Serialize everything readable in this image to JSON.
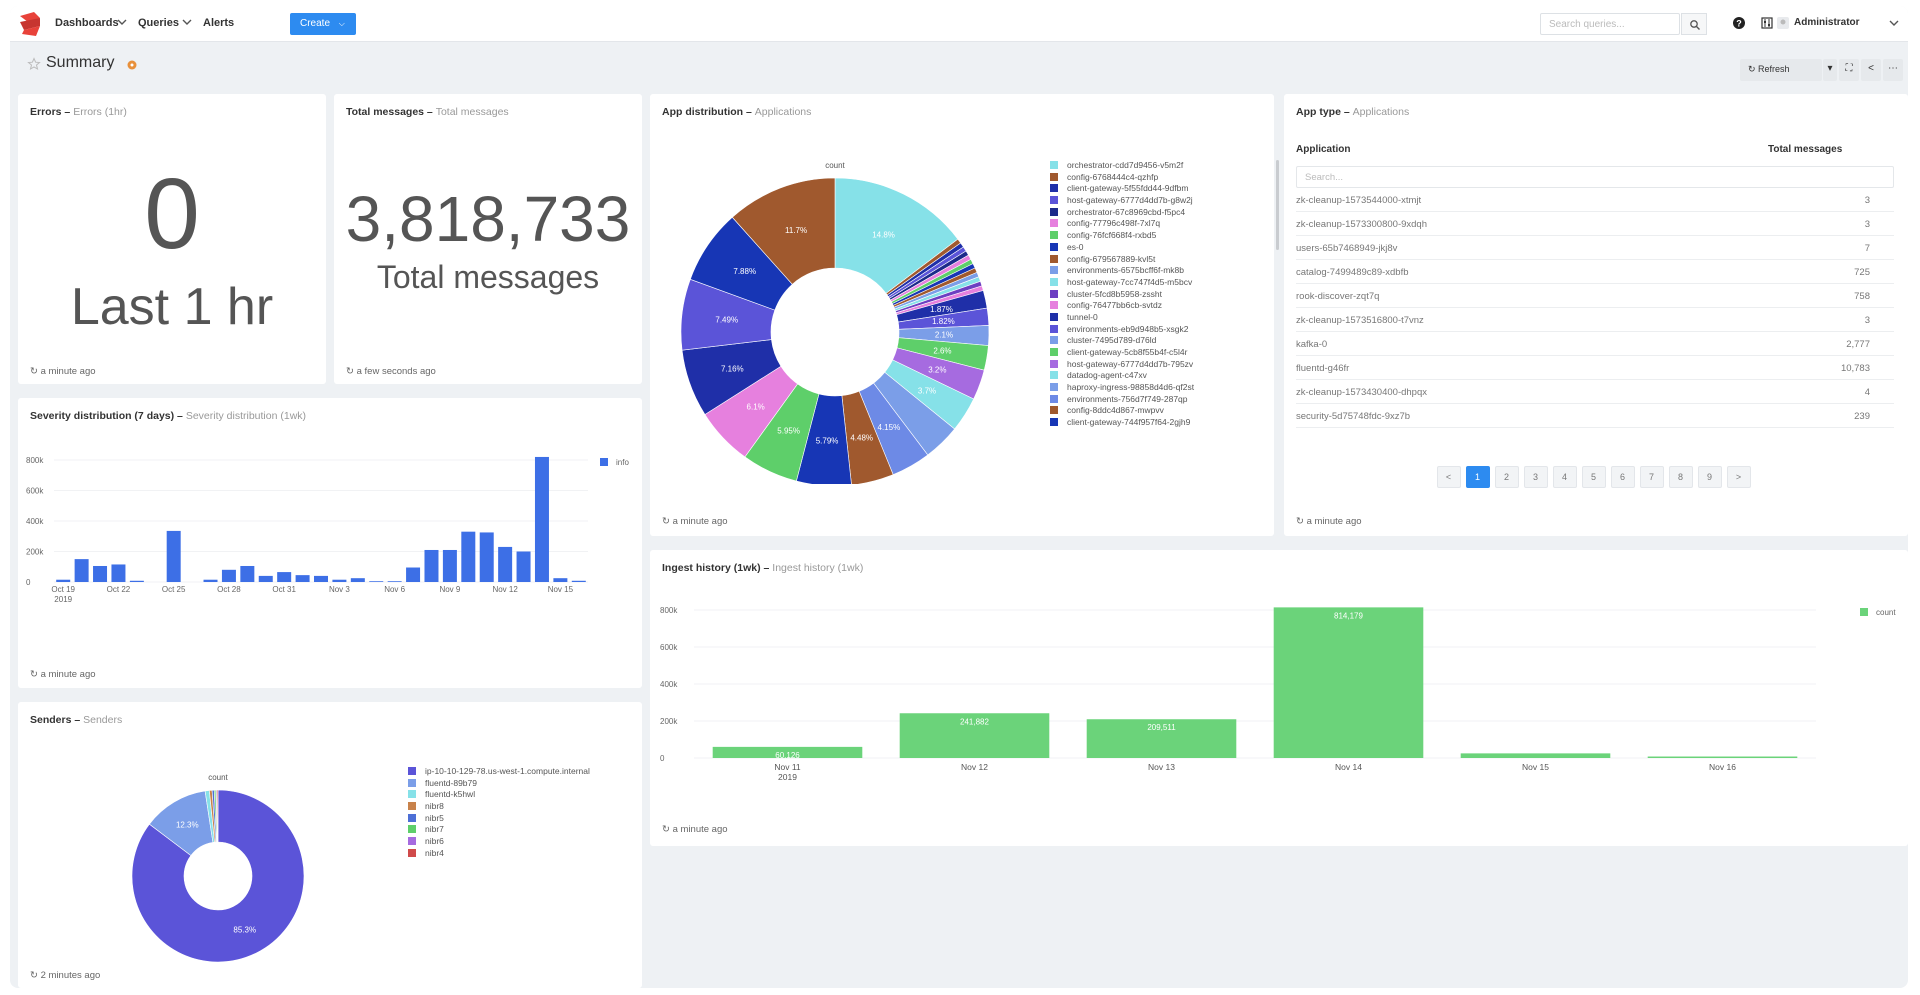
{
  "nav": {
    "dashboards": "Dashboards",
    "queries": "Queries",
    "alerts": "Alerts",
    "create": "Create",
    "search_placeholder": "Search queries...",
    "user": "Administrator"
  },
  "page": {
    "title": "Summary",
    "refresh": "Refresh"
  },
  "errors": {
    "title": "Errors",
    "subtitle": "Errors (1hr)",
    "value": "0",
    "label": "Last 1 hr",
    "updated": "a minute ago"
  },
  "total_messages": {
    "title": "Total messages",
    "subtitle": "Total messages",
    "value": "3,818,733",
    "label": "Total messages",
    "updated": "a few seconds ago"
  },
  "severity": {
    "title": "Severity distribution (7 days)",
    "subtitle": "Severity distribution (1wk)",
    "updated": "a minute ago"
  },
  "senders": {
    "title": "Senders",
    "subtitle": "Senders",
    "updated": "2 minutes ago"
  },
  "app_distribution": {
    "title": "App distribution",
    "subtitle": "Applications",
    "updated": "a minute ago"
  },
  "app_type": {
    "title": "App type",
    "subtitle": "Applications",
    "col_application": "Application",
    "col_total": "Total messages",
    "search_placeholder": "Search...",
    "rows": [
      {
        "app": "zk-cleanup-1573544000-xtmjt",
        "total": "3"
      },
      {
        "app": "zk-cleanup-1573300800-9xdqh",
        "total": "3"
      },
      {
        "app": "users-65b7468949-jkj8v",
        "total": "7"
      },
      {
        "app": "catalog-7499489c89-xdbfb",
        "total": "725"
      },
      {
        "app": "rook-discover-zqt7q",
        "total": "758"
      },
      {
        "app": "zk-cleanup-1573516800-t7vnz",
        "total": "3"
      },
      {
        "app": "kafka-0",
        "total": "2,777"
      },
      {
        "app": "fluentd-g46fr",
        "total": "10,783"
      },
      {
        "app": "zk-cleanup-1573430400-dhpqx",
        "total": "4"
      },
      {
        "app": "security-5d75748fdc-9xz7b",
        "total": "239"
      }
    ],
    "pages": [
      "<",
      "1",
      "2",
      "3",
      "4",
      "5",
      "6",
      "7",
      "8",
      "9",
      ">"
    ],
    "updated": "a minute ago"
  },
  "ingest": {
    "title": "Ingest history (1wk)",
    "subtitle": "Ingest history (1wk)",
    "updated": "a minute ago"
  },
  "colors": {
    "accent": "#2d8bf0",
    "bar_blue": "#3d6fe6",
    "bar_green": "#6bd37a"
  },
  "chart_data": [
    {
      "id": "severity",
      "type": "bar",
      "legend": [
        "info"
      ],
      "color": "#3d6fe6",
      "ylim": [
        0,
        800000
      ],
      "yticks": [
        "0",
        "200k",
        "400k",
        "600k",
        "800k"
      ],
      "xticks": [
        {
          "i": 0,
          "label": "Oct 19",
          "label2": "2019"
        },
        {
          "i": 3,
          "label": "Oct 22"
        },
        {
          "i": 6,
          "label": "Oct 25"
        },
        {
          "i": 9,
          "label": "Oct 28"
        },
        {
          "i": 12,
          "label": "Oct 31"
        },
        {
          "i": 15,
          "label": "Nov 3"
        },
        {
          "i": 18,
          "label": "Nov 6"
        },
        {
          "i": 21,
          "label": "Nov 9"
        },
        {
          "i": 24,
          "label": "Nov 12"
        },
        {
          "i": 27,
          "label": "Nov 15"
        }
      ],
      "values": [
        15000,
        150000,
        105000,
        115000,
        8000,
        0,
        335000,
        0,
        15000,
        80000,
        105000,
        40000,
        65000,
        45000,
        40000,
        15000,
        25000,
        5000,
        5000,
        95000,
        210000,
        210000,
        330000,
        325000,
        230000,
        200000,
        820000,
        25000,
        8000
      ]
    },
    {
      "id": "senders",
      "type": "pie",
      "title": "count",
      "slices": [
        {
          "label": "ip-10-10-129-78.us-west-1.compute.internal",
          "value": 85.3,
          "color": "#5b54d8"
        },
        {
          "label": "fluentd-89b79",
          "value": 12.3,
          "color": "#7b9ee8"
        },
        {
          "label": "fluentd-k5hwl",
          "value": 0.8,
          "color": "#86e1e8"
        },
        {
          "label": "nibr8",
          "value": 0.5,
          "color": "#c8824b"
        },
        {
          "label": "nibr5",
          "value": 0.4,
          "color": "#4d6fd6"
        },
        {
          "label": "nibr7",
          "value": 0.3,
          "color": "#5ecf6a"
        },
        {
          "label": "nibr6",
          "value": 0.2,
          "color": "#a66be0"
        },
        {
          "label": "nibr4",
          "value": 0.2,
          "color": "#d04a4a"
        }
      ],
      "labels_shown": [
        {
          "slice": 0,
          "text": "85.3%"
        },
        {
          "slice": 1,
          "text": "12.3%"
        }
      ]
    },
    {
      "id": "app_distribution",
      "type": "pie",
      "title": "count",
      "slices": [
        {
          "label": "orchestrator-cdd7d9456-v5m2f",
          "value": 14.8,
          "color": "#86e1e8"
        },
        {
          "label": "config-6768444c4-qzhfp",
          "value": 0.5,
          "color": "#a0592e"
        },
        {
          "label": "client-gateway-5f55fdd44-9dfbm",
          "value": 0.5,
          "color": "#1f2fa8"
        },
        {
          "label": "host-gateway-6777d4dd7b-g8w2j",
          "value": 0.5,
          "color": "#5b54d8"
        },
        {
          "label": "orchestrator-67c8969cbd-f5pc4",
          "value": 0.5,
          "color": "#1c2a8a"
        },
        {
          "label": "config-77796c498f-7xl7q",
          "value": 0.5,
          "color": "#e680de"
        },
        {
          "label": "config-76fcf668f4-rxbd5",
          "value": 0.5,
          "color": "#5ecf6a"
        },
        {
          "label": "es-0",
          "value": 0.5,
          "color": "#1736b5"
        },
        {
          "label": "config-679567889-kvl5t",
          "value": 0.5,
          "color": "#a0592e"
        },
        {
          "label": "environments-6575bcff6f-mk8b",
          "value": 0.5,
          "color": "#7b9ee8"
        },
        {
          "label": "host-gateway-7cc747f4d5-m5bcv",
          "value": 0.5,
          "color": "#86e1e8"
        },
        {
          "label": "cluster-5fcd8b5958-zssht",
          "value": 0.5,
          "color": "#6d3fc2"
        },
        {
          "label": "config-76477bb6cb-svtdz",
          "value": 0.5,
          "color": "#e680de"
        },
        {
          "label": "tunnel-0",
          "value": 1.87,
          "color": "#1f2fa8"
        },
        {
          "label": "environments-eb9d948b5-xsgk2",
          "value": 1.82,
          "color": "#5b54d8"
        },
        {
          "label": "cluster-7495d789-d76ld",
          "value": 2.1,
          "color": "#7b9ee8"
        },
        {
          "label": "client-gateway-5cb8f55b4f-c5l4r",
          "value": 2.6,
          "color": "#5ecf6a"
        },
        {
          "label": "host-gateway-6777d4dd7b-795zv",
          "value": 3.2,
          "color": "#a66be0"
        },
        {
          "label": "datadog-agent-c47xv",
          "value": 3.7,
          "color": "#86e1e8"
        },
        {
          "label": "haproxy-ingress-98858d4d6-qf2st",
          "value": 3.9,
          "color": "#7b9ee8"
        },
        {
          "label": "environments-756d7f749-287qp",
          "value": 4.15,
          "color": "#6d8ae6"
        },
        {
          "label": "config-8ddc4d867-mwpvv",
          "value": 4.48,
          "color": "#a0592e"
        },
        {
          "label": "client-gateway-744f957f64-2gjh9",
          "value": 5.79,
          "color": "#1736b5"
        },
        {
          "label": "",
          "value": 5.95,
          "color": "#5ecf6a"
        },
        {
          "label": "",
          "value": 6.1,
          "color": "#e680de"
        },
        {
          "label": "",
          "value": 7.16,
          "color": "#1f2fa8"
        },
        {
          "label": "",
          "value": 7.49,
          "color": "#5b54d8"
        },
        {
          "label": "",
          "value": 7.88,
          "color": "#1736b5"
        },
        {
          "label": "",
          "value": 11.7,
          "color": "#a0592e"
        }
      ],
      "labels_shown": [
        {
          "slice": 0,
          "text": "14.8%"
        },
        {
          "slice": 13,
          "text": "1.87%"
        },
        {
          "slice": 14,
          "text": "1.82%"
        },
        {
          "slice": 15,
          "text": "2.1%"
        },
        {
          "slice": 16,
          "text": "2.6%"
        },
        {
          "slice": 17,
          "text": "3.2%"
        },
        {
          "slice": 18,
          "text": "3.7%"
        },
        {
          "slice": 20,
          "text": "4.15%"
        },
        {
          "slice": 21,
          "text": "4.48%"
        },
        {
          "slice": 22,
          "text": "5.79%"
        },
        {
          "slice": 23,
          "text": "5.95%"
        },
        {
          "slice": 24,
          "text": "6.1%"
        },
        {
          "slice": 25,
          "text": "7.16%"
        },
        {
          "slice": 26,
          "text": "7.49%"
        },
        {
          "slice": 27,
          "text": "7.88%"
        },
        {
          "slice": 28,
          "text": "11.7%"
        }
      ]
    },
    {
      "id": "ingest",
      "type": "bar",
      "legend": [
        "count"
      ],
      "color": "#6bd37a",
      "ylim": [
        0,
        800000
      ],
      "yticks": [
        "0",
        "200k",
        "400k",
        "600k",
        "800k"
      ],
      "categories": [
        "Nov 11",
        "Nov 12",
        "Nov 13",
        "Nov 14",
        "Nov 15",
        "Nov 16"
      ],
      "category_sub": [
        "2019",
        "",
        "",
        "",
        "",
        ""
      ],
      "values": [
        60126,
        241882,
        209511,
        814179,
        25000,
        8000
      ],
      "data_labels": [
        "60,126",
        "241,882",
        "209,511",
        "814,179",
        "",
        ""
      ]
    }
  ]
}
